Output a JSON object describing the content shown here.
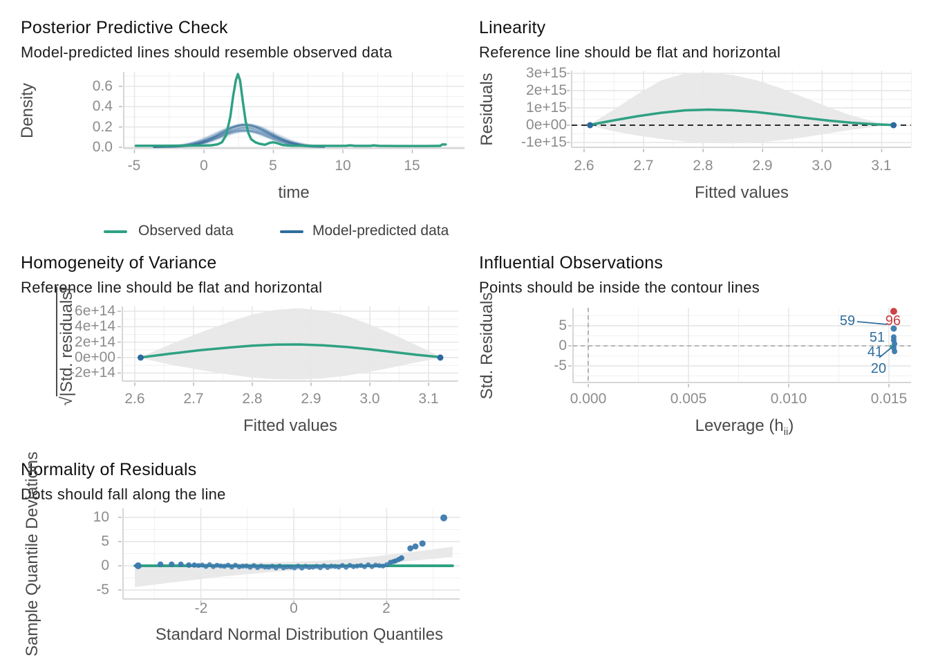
{
  "colors": {
    "green": "#2fa183",
    "blue_line": "#2d6d9c",
    "dot_blue": "#3a79ad",
    "dark_dot_blue": "#2c6a9d",
    "red": "#c8393c",
    "label_blue": "#2e6d9e",
    "ribbon": "#e7e7e7",
    "grid_major": "#e4e4e4",
    "grid_minor": "#f1f1f1",
    "axis_line": "#d6d6d6",
    "tick_mark": "#b8b8b8",
    "dashed_black": "#111111",
    "dashed_gray": "#a3a3a3"
  },
  "panels": {
    "ppc": {
      "title": "Posterior Predictive Check",
      "subtitle": "Model-predicted lines should resemble observed data",
      "ylabel": "Density",
      "xlabel": "time",
      "yticks": [
        "0.6",
        "0.4",
        "0.2",
        "0.0"
      ],
      "xticks": [
        "-5",
        "0",
        "5",
        "10",
        "15"
      ],
      "legend": [
        {
          "label": "Observed data"
        },
        {
          "label": "Model-predicted data"
        }
      ]
    },
    "linearity": {
      "title": "Linearity",
      "subtitle": "Reference line should be flat and horizontal",
      "ylabel": "Residuals",
      "xlabel": "Fitted values",
      "yticks": [
        "3e+15",
        "2e+15",
        "1e+15",
        "0e+00",
        "-1e+15"
      ],
      "xticks": [
        "2.6",
        "2.7",
        "2.8",
        "2.9",
        "3.0",
        "3.1"
      ]
    },
    "homogeneity": {
      "title": "Homogeneity of Variance",
      "subtitle": "Reference line should be flat and horizontal",
      "ylabel_sqrt": "√",
      "ylabel_body": "|Std. residuals|",
      "xlabel": "Fitted values",
      "yticks": [
        "6e+14",
        "4e+14",
        "2e+14",
        "0e+00",
        "-2e+14"
      ],
      "xticks": [
        "2.6",
        "2.7",
        "2.8",
        "2.9",
        "3.0",
        "3.1"
      ]
    },
    "influential": {
      "title": "Influential Observations",
      "subtitle": "Points should be inside the contour lines",
      "ylabel": "Std. Residuals",
      "xlabel_pre": "Leverage (h",
      "xlabel_sub": "ii",
      "xlabel_post": ")",
      "yticks": [
        "5",
        "0",
        "-5"
      ],
      "xticks": [
        "0.000",
        "0.005",
        "0.010",
        "0.015"
      ],
      "point_labels": [
        "59",
        "96",
        "51",
        "41",
        "20"
      ]
    },
    "normality": {
      "title": "Normality of Residuals",
      "subtitle": "Dots should fall along the line",
      "ylabel": "Sample Quantile Deviations",
      "xlabel": "Standard Normal Distribution Quantiles",
      "yticks": [
        "10",
        "5",
        "0",
        "-5"
      ],
      "xticks": [
        "-2",
        "0",
        "2"
      ]
    }
  },
  "chart_data": {
    "ppc": {
      "type": "line",
      "title": "Posterior Predictive Check",
      "subtitle": "Model-predicted lines should resemble observed data",
      "xlabel": "time",
      "ylabel": "Density",
      "xlim": [
        -5.8,
        18.8
      ],
      "ylim": [
        0,
        0.74
      ],
      "xticks": [
        -5,
        0,
        5,
        10,
        15
      ],
      "yticks": [
        0.0,
        0.2,
        0.4,
        0.6
      ],
      "legend": [
        "Observed data",
        "Model-predicted data"
      ],
      "legend_position": "bottom",
      "grid": true,
      "observed": [
        [
          -4.9,
          0.015
        ],
        [
          -4,
          0.015
        ],
        [
          -3,
          0.015
        ],
        [
          -2,
          0.016
        ],
        [
          -1,
          0.017
        ],
        [
          0,
          0.018
        ],
        [
          0.5,
          0.02
        ],
        [
          1,
          0.03
        ],
        [
          1.3,
          0.05
        ],
        [
          1.6,
          0.12
        ],
        [
          1.9,
          0.3
        ],
        [
          2.1,
          0.5
        ],
        [
          2.3,
          0.66
        ],
        [
          2.45,
          0.72
        ],
        [
          2.6,
          0.66
        ],
        [
          2.8,
          0.45
        ],
        [
          3.0,
          0.26
        ],
        [
          3.2,
          0.14
        ],
        [
          3.4,
          0.08
        ],
        [
          3.7,
          0.05
        ],
        [
          4.0,
          0.035
        ],
        [
          4.4,
          0.025
        ],
        [
          4.75,
          0.045
        ],
        [
          5.0,
          0.05
        ],
        [
          5.3,
          0.04
        ],
        [
          5.7,
          0.022
        ],
        [
          6.3,
          0.016
        ],
        [
          7,
          0.015
        ],
        [
          8,
          0.014
        ],
        [
          9,
          0.014
        ],
        [
          10.2,
          0.014
        ],
        [
          10.5,
          0.02
        ],
        [
          10.9,
          0.014
        ],
        [
          12,
          0.014
        ],
        [
          12.2,
          0.02
        ],
        [
          12.6,
          0.014
        ],
        [
          14,
          0.013
        ],
        [
          15,
          0.013
        ],
        [
          16,
          0.013
        ],
        [
          17,
          0.014
        ],
        [
          17.15,
          0.028
        ],
        [
          17.4,
          0.028
        ]
      ],
      "predicted_band": {
        "center": 2.95,
        "sd": 1.85,
        "peak": 0.225,
        "n_lines": 38,
        "x_range": [
          -3.6,
          8.8
        ]
      }
    },
    "linearity": {
      "type": "line",
      "title": "Linearity",
      "subtitle": "Reference line should be flat and horizontal",
      "xlabel": "Fitted values",
      "ylabel": "Residuals",
      "units": "1e+15",
      "xlim": [
        2.58,
        3.15
      ],
      "ylim": [
        -1.3,
        3.2
      ],
      "xticks": [
        2.6,
        2.7,
        2.8,
        2.9,
        3.0,
        3.1
      ],
      "yticks": [
        3,
        2,
        1,
        0,
        -1
      ],
      "ref_line": 0,
      "smooth": [
        [
          2.61,
          0.02
        ],
        [
          2.65,
          0.28
        ],
        [
          2.69,
          0.52
        ],
        [
          2.73,
          0.72
        ],
        [
          2.77,
          0.86
        ],
        [
          2.81,
          0.9
        ],
        [
          2.85,
          0.86
        ],
        [
          2.89,
          0.76
        ],
        [
          2.93,
          0.6
        ],
        [
          2.97,
          0.43
        ],
        [
          3.01,
          0.27
        ],
        [
          3.05,
          0.14
        ],
        [
          3.09,
          0.05
        ],
        [
          3.12,
          0.01
        ]
      ],
      "ribbon_upper": [
        [
          2.61,
          0.05
        ],
        [
          2.65,
          0.9
        ],
        [
          2.69,
          1.8
        ],
        [
          2.73,
          2.6
        ],
        [
          2.77,
          3.0
        ],
        [
          2.81,
          3.05
        ],
        [
          2.85,
          2.9
        ],
        [
          2.89,
          2.6
        ],
        [
          2.93,
          2.15
        ],
        [
          2.97,
          1.6
        ],
        [
          3.01,
          1.05
        ],
        [
          3.05,
          0.55
        ],
        [
          3.09,
          0.18
        ],
        [
          3.12,
          0.02
        ]
      ],
      "ribbon_lower": [
        [
          2.61,
          -0.03
        ],
        [
          2.65,
          -0.35
        ],
        [
          2.69,
          -0.6
        ],
        [
          2.73,
          -0.8
        ],
        [
          2.77,
          -0.95
        ],
        [
          2.81,
          -1.03
        ],
        [
          2.85,
          -1.05
        ],
        [
          2.89,
          -1.0
        ],
        [
          2.93,
          -0.88
        ],
        [
          2.97,
          -0.7
        ],
        [
          3.01,
          -0.48
        ],
        [
          3.05,
          -0.26
        ],
        [
          3.09,
          -0.09
        ],
        [
          3.12,
          -0.01
        ]
      ],
      "end_points": [
        [
          2.61,
          0
        ],
        [
          3.12,
          0
        ]
      ]
    },
    "homogeneity": {
      "type": "line",
      "title": "Homogeneity of Variance",
      "subtitle": "Reference line should be flat and horizontal",
      "xlabel": "Fitted values",
      "ylabel": "sqrt(|Std. residuals|)",
      "units": "1e+14",
      "xlim": [
        2.58,
        3.15
      ],
      "ylim": [
        -3.0,
        6.6
      ],
      "xticks": [
        2.6,
        2.7,
        2.8,
        2.9,
        3.0,
        3.1
      ],
      "yticks": [
        6,
        4,
        2,
        0,
        -2
      ],
      "smooth": [
        [
          2.61,
          0.02
        ],
        [
          2.66,
          0.5
        ],
        [
          2.71,
          0.95
        ],
        [
          2.76,
          1.3
        ],
        [
          2.8,
          1.55
        ],
        [
          2.84,
          1.68
        ],
        [
          2.88,
          1.7
        ],
        [
          2.92,
          1.6
        ],
        [
          2.96,
          1.38
        ],
        [
          3.0,
          1.08
        ],
        [
          3.04,
          0.72
        ],
        [
          3.08,
          0.36
        ],
        [
          3.12,
          0.05
        ]
      ],
      "ribbon_upper": [
        [
          2.61,
          0.1
        ],
        [
          2.66,
          1.7
        ],
        [
          2.71,
          3.2
        ],
        [
          2.76,
          4.6
        ],
        [
          2.8,
          5.6
        ],
        [
          2.84,
          6.2
        ],
        [
          2.88,
          6.4
        ],
        [
          2.92,
          6.1
        ],
        [
          2.96,
          5.4
        ],
        [
          3.0,
          4.3
        ],
        [
          3.04,
          3.0
        ],
        [
          3.08,
          1.6
        ],
        [
          3.12,
          0.15
        ]
      ],
      "ribbon_lower": [
        [
          2.61,
          -0.08
        ],
        [
          2.66,
          -0.9
        ],
        [
          2.71,
          -1.6
        ],
        [
          2.76,
          -2.2
        ],
        [
          2.8,
          -2.6
        ],
        [
          2.84,
          -2.8
        ],
        [
          2.88,
          -2.85
        ],
        [
          2.92,
          -2.7
        ],
        [
          2.96,
          -2.35
        ],
        [
          3.0,
          -1.85
        ],
        [
          3.04,
          -1.25
        ],
        [
          3.08,
          -0.6
        ],
        [
          3.12,
          -0.05
        ]
      ],
      "end_points": [
        [
          2.61,
          0
        ],
        [
          3.12,
          0
        ]
      ]
    },
    "influential": {
      "type": "scatter",
      "title": "Influential Observations",
      "subtitle": "Points should be inside the contour lines",
      "xlabel": "Leverage (h_ii)",
      "ylabel": "Std. Residuals",
      "xlim": [
        -0.0008,
        0.0161
      ],
      "ylim": [
        -9.5,
        9.5
      ],
      "xticks": [
        0.0,
        0.005,
        0.01,
        0.015
      ],
      "yticks": [
        5,
        0,
        -5
      ],
      "ref_vline": 0,
      "ref_hline": 0,
      "points": [
        {
          "x": 0.01524,
          "y": 8.6,
          "color": "red",
          "r": 5
        },
        {
          "x": 0.01524,
          "y": 4.3,
          "color": "blue",
          "r": 4.5
        },
        {
          "x": 0.01524,
          "y": 2.2,
          "color": "blue",
          "r": 4
        },
        {
          "x": 0.01524,
          "y": 1.4,
          "color": "blue",
          "r": 4
        },
        {
          "x": 0.01528,
          "y": 0.5,
          "color": "blue",
          "r": 4
        },
        {
          "x": 0.0151,
          "y": -0.1,
          "color": "green",
          "r": 2.2
        },
        {
          "x": 0.01524,
          "y": -0.5,
          "color": "blue",
          "r": 4
        },
        {
          "x": 0.01528,
          "y": -1.4,
          "color": "blue",
          "r": 4
        }
      ],
      "point_labels": [
        {
          "text": "59",
          "x": 0.0129,
          "y": 6.2,
          "color": "blue"
        },
        {
          "text": "96",
          "x": 0.0152,
          "y": 6.2,
          "color": "red"
        },
        {
          "text": "51",
          "x": 0.0144,
          "y": 2.1,
          "color": "blue"
        },
        {
          "text": "41",
          "x": 0.0143,
          "y": -1.6,
          "color": "blue"
        },
        {
          "text": "20",
          "x": 0.0145,
          "y": -5.7,
          "color": "blue"
        }
      ]
    },
    "normality": {
      "type": "scatter",
      "title": "Normality of Residuals",
      "subtitle": "Dots should fall along the line",
      "xlabel": "Standard Normal Distribution Quantiles",
      "ylabel": "Sample Quantile Deviations",
      "xlim": [
        -3.7,
        3.6
      ],
      "ylim": [
        -6.9,
        11.9
      ],
      "xticks": [
        -2,
        0,
        2
      ],
      "yticks": [
        10,
        5,
        0,
        -5
      ],
      "line_y": 0,
      "left_dots": [
        [
          -3.35,
          0.0,
          5
        ],
        [
          -2.87,
          0.3,
          4.2
        ],
        [
          -2.63,
          0.3,
          4.2
        ],
        [
          -2.43,
          0.3,
          4
        ],
        [
          -2.26,
          0.15,
          4
        ],
        [
          -2.14,
          0.15,
          3.8
        ]
      ],
      "dense_band": {
        "q_start": -2.05,
        "q_end": 2.0,
        "n": 52,
        "r": 3.6
      },
      "tail_dots": [
        [
          2.08,
          0.7,
          3.6
        ],
        [
          2.14,
          0.85,
          3.6
        ],
        [
          2.19,
          1.0,
          3.8
        ],
        [
          2.26,
          1.3,
          3.8
        ],
        [
          2.32,
          1.6,
          4
        ],
        [
          2.51,
          3.6,
          4.4
        ],
        [
          2.62,
          4.0,
          4.4
        ],
        [
          2.77,
          4.6,
          4.6
        ],
        [
          3.23,
          9.9,
          5
        ]
      ],
      "ribbon_upper": [
        [
          -3.42,
          0.25
        ],
        [
          -2.5,
          0.35
        ],
        [
          -1.5,
          0.5
        ],
        [
          -0.5,
          0.7
        ],
        [
          0.5,
          1.0
        ],
        [
          1.2,
          1.4
        ],
        [
          1.8,
          2.0
        ],
        [
          2.4,
          2.7
        ],
        [
          3.0,
          3.4
        ],
        [
          3.42,
          3.95
        ]
      ],
      "ribbon_lower": [
        [
          -3.42,
          -4.4
        ],
        [
          -2.5,
          -3.3
        ],
        [
          -1.5,
          -2.2
        ],
        [
          -0.5,
          -1.3
        ],
        [
          0.5,
          -0.6
        ],
        [
          1.2,
          -0.15
        ],
        [
          1.8,
          0.35
        ],
        [
          2.4,
          0.9
        ],
        [
          3.0,
          1.45
        ],
        [
          3.42,
          1.8
        ]
      ]
    }
  }
}
